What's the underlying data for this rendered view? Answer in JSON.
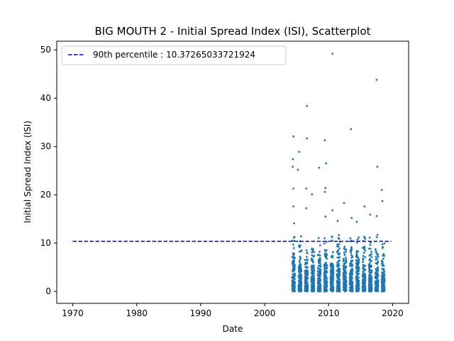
{
  "chart_data": {
    "type": "scatter",
    "title": "BIG MOUTH 2 - Initial Spread Index (ISI), Scatterplot",
    "xlabel": "Date",
    "ylabel": "Initial Spread Index (ISI)",
    "xlim": [
      1967.5,
      2022.5
    ],
    "ylim": [
      -2.47,
      51.8
    ],
    "xticks": [
      1970,
      1980,
      1990,
      2000,
      2010,
      2020
    ],
    "yticks": [
      0,
      10,
      20,
      30,
      40,
      50
    ],
    "grid": false,
    "legend": {
      "placement": "top-left",
      "entries": [
        "90th percentile : 10.37265033721924"
      ]
    },
    "colors": {
      "points": "#1f77b4",
      "percentile_line": "#0000cd"
    },
    "percentile_line": {
      "name": "90th percentile : 10.37265033721924",
      "y": 10.37265033721924,
      "x": [
        1970,
        2019.8
      ],
      "style": "dashed"
    },
    "series": [
      {
        "season_start_years": [
          2004,
          2005,
          2006,
          2007,
          2008,
          2009,
          2010,
          2011,
          2012,
          2013,
          2014,
          2015,
          2016,
          2017,
          2018
        ],
        "season_length_years": 0.45,
        "notable_points": [
          {
            "x": 2010.6,
            "y": 49.2
          },
          {
            "x": 2017.5,
            "y": 43.8
          },
          {
            "x": 2006.6,
            "y": 38.4
          },
          {
            "x": 2013.5,
            "y": 33.6
          },
          {
            "x": 2004.5,
            "y": 32.1
          },
          {
            "x": 2006.6,
            "y": 31.7
          },
          {
            "x": 2009.4,
            "y": 31.3
          },
          {
            "x": 2005.4,
            "y": 28.9
          },
          {
            "x": 2004.4,
            "y": 27.4
          },
          {
            "x": 2009.6,
            "y": 26.5
          },
          {
            "x": 2004.4,
            "y": 25.8
          },
          {
            "x": 2017.6,
            "y": 25.8
          },
          {
            "x": 2008.5,
            "y": 25.6
          },
          {
            "x": 2005.2,
            "y": 25.2
          },
          {
            "x": 2004.5,
            "y": 21.3
          },
          {
            "x": 2006.5,
            "y": 21.3
          },
          {
            "x": 2009.5,
            "y": 21.4
          },
          {
            "x": 2018.3,
            "y": 21.0
          },
          {
            "x": 2009.4,
            "y": 20.6
          },
          {
            "x": 2007.4,
            "y": 20.1
          },
          {
            "x": 2018.4,
            "y": 18.7
          },
          {
            "x": 2012.4,
            "y": 18.3
          },
          {
            "x": 2004.5,
            "y": 17.6
          },
          {
            "x": 2015.6,
            "y": 17.6
          },
          {
            "x": 2006.5,
            "y": 17.2
          },
          {
            "x": 2010.6,
            "y": 16.8
          },
          {
            "x": 2016.5,
            "y": 15.9
          },
          {
            "x": 2017.5,
            "y": 15.6
          },
          {
            "x": 2009.5,
            "y": 15.5
          },
          {
            "x": 2013.6,
            "y": 15.2
          },
          {
            "x": 2011.4,
            "y": 14.6
          },
          {
            "x": 2014.4,
            "y": 14.4
          },
          {
            "x": 2004.6,
            "y": 14.1
          }
        ]
      }
    ]
  }
}
